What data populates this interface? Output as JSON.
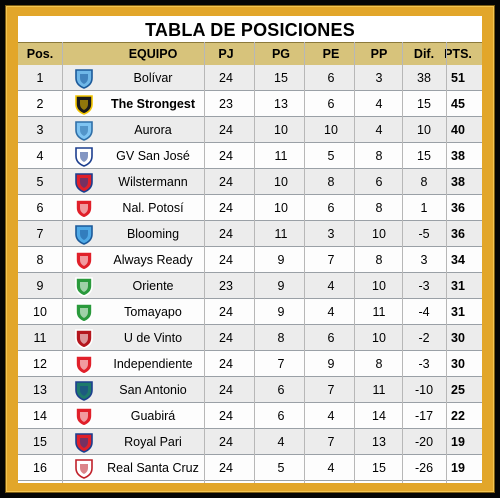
{
  "title": "TABLA DE POSICIONES",
  "columns": [
    "Pos.",
    "EQUIPO",
    "PJ",
    "PG",
    "PE",
    "PP",
    "Dif.",
    "PTS."
  ],
  "colors": {
    "frame_gold": "#e2a62a",
    "header_bg": "#d7c37b",
    "row_alt": "#ececec"
  },
  "rows": [
    {
      "pos": "1",
      "team": "Bolívar",
      "pj": "24",
      "pg": "15",
      "pe": "6",
      "pp": "3",
      "dif": "38",
      "pts": "51",
      "crest": "bolivar-crest-icon",
      "c1": "#6fb7e8",
      "c2": "#1c5a9a"
    },
    {
      "pos": "2",
      "team": "The Strongest",
      "pj": "23",
      "pg": "13",
      "pe": "6",
      "pp": "4",
      "dif": "15",
      "pts": "45",
      "crest": "the-strongest-crest-icon",
      "c1": "#1a1a1a",
      "c2": "#f2c500"
    },
    {
      "pos": "3",
      "team": "Aurora",
      "pj": "24",
      "pg": "10",
      "pe": "10",
      "pp": "4",
      "dif": "10",
      "pts": "40",
      "crest": "aurora-crest-icon",
      "c1": "#7fc4f2",
      "c2": "#2f6fa8"
    },
    {
      "pos": "4",
      "team": "GV San José",
      "pj": "24",
      "pg": "11",
      "pe": "5",
      "pp": "8",
      "dif": "15",
      "pts": "38",
      "crest": "gv-san-jose-crest-icon",
      "c1": "#ffffff",
      "c2": "#1d3f8f"
    },
    {
      "pos": "5",
      "team": "Wilstermann",
      "pj": "24",
      "pg": "10",
      "pe": "8",
      "pp": "6",
      "dif": "8",
      "pts": "38",
      "crest": "wilstermann-crest-icon",
      "c1": "#e0202a",
      "c2": "#1d3f8f"
    },
    {
      "pos": "6",
      "team": "Nal. Potosí",
      "pj": "24",
      "pg": "10",
      "pe": "6",
      "pp": "8",
      "dif": "1",
      "pts": "36",
      "crest": "nacional-potosi-crest-icon",
      "c1": "#e0202a",
      "c2": "#ffffff"
    },
    {
      "pos": "7",
      "team": "Blooming",
      "pj": "24",
      "pg": "11",
      "pe": "3",
      "pp": "10",
      "dif": "-5",
      "pts": "36",
      "crest": "blooming-crest-icon",
      "c1": "#4fa9e6",
      "c2": "#1c5a9a"
    },
    {
      "pos": "8",
      "team": "Always Ready",
      "pj": "24",
      "pg": "9",
      "pe": "7",
      "pp": "8",
      "dif": "3",
      "pts": "34",
      "crest": "always-ready-crest-icon",
      "c1": "#e0202a",
      "c2": "#ffffff"
    },
    {
      "pos": "9",
      "team": "Oriente",
      "pj": "23",
      "pg": "9",
      "pe": "4",
      "pp": "10",
      "dif": "-3",
      "pts": "31",
      "crest": "oriente-crest-icon",
      "c1": "#2a9a3c",
      "c2": "#ffffff"
    },
    {
      "pos": "10",
      "team": "Tomayapo",
      "pj": "24",
      "pg": "9",
      "pe": "4",
      "pp": "11",
      "dif": "-4",
      "pts": "31",
      "crest": "tomayapo-crest-icon",
      "c1": "#2a9a3c",
      "c2": "#ffffff"
    },
    {
      "pos": "11",
      "team": "U de Vinto",
      "pj": "24",
      "pg": "8",
      "pe": "6",
      "pp": "10",
      "dif": "-2",
      "pts": "30",
      "crest": "u-de-vinto-crest-icon",
      "c1": "#b4161d",
      "c2": "#ffffff"
    },
    {
      "pos": "12",
      "team": "Independiente",
      "pj": "24",
      "pg": "7",
      "pe": "9",
      "pp": "8",
      "dif": "-3",
      "pts": "30",
      "crest": "independiente-crest-icon",
      "c1": "#e0202a",
      "c2": "#ffffff"
    },
    {
      "pos": "13",
      "team": "San Antonio",
      "pj": "24",
      "pg": "6",
      "pe": "7",
      "pp": "11",
      "dif": "-10",
      "pts": "25",
      "crest": "san-antonio-crest-icon",
      "c1": "#1e7a6b",
      "c2": "#1d3f8f"
    },
    {
      "pos": "14",
      "team": "Guabirá",
      "pj": "24",
      "pg": "6",
      "pe": "4",
      "pp": "14",
      "dif": "-17",
      "pts": "22",
      "crest": "guabira-crest-icon",
      "c1": "#e0202a",
      "c2": "#ffffff"
    },
    {
      "pos": "15",
      "team": "Royal Pari",
      "pj": "24",
      "pg": "4",
      "pe": "7",
      "pp": "13",
      "dif": "-20",
      "pts": "19",
      "crest": "royal-pari-crest-icon",
      "c1": "#e0202a",
      "c2": "#1d3f8f"
    },
    {
      "pos": "16",
      "team": "Real Santa Cruz",
      "pj": "24",
      "pg": "5",
      "pe": "4",
      "pp": "15",
      "dif": "-26",
      "pts": "19",
      "crest": "real-santa-cruz-crest-icon",
      "c1": "#ffffff",
      "c2": "#c0202a"
    }
  ]
}
